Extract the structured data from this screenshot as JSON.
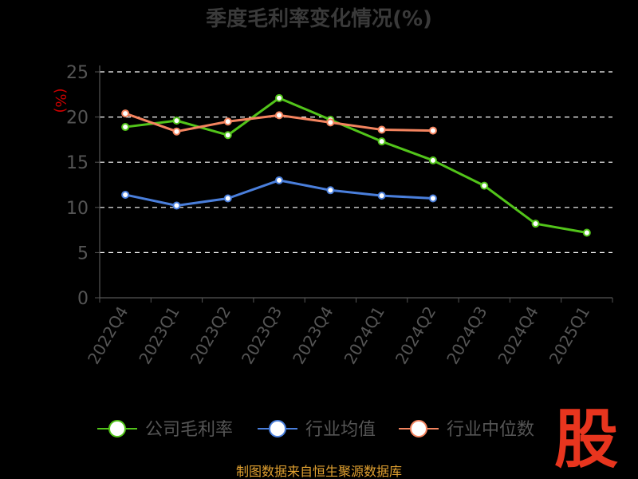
{
  "chart_data": {
    "type": "line",
    "title": "季度毛利率变化情况(%)",
    "ylabel": "(%)",
    "ylim": [
      0,
      25
    ],
    "yticks": [
      0,
      5,
      10,
      15,
      20,
      25
    ],
    "grid": "horizontal-dashed",
    "legend_position": "bottom",
    "categories": [
      "2022Q4",
      "2023Q1",
      "2023Q2",
      "2023Q3",
      "2023Q4",
      "2024Q1",
      "2024Q2",
      "2024Q3",
      "2024Q4",
      "2025Q1"
    ],
    "series": [
      {
        "name": "公司毛利率",
        "color": "#52c41a",
        "values": [
          18.9,
          19.6,
          18.0,
          22.1,
          19.7,
          17.3,
          15.2,
          12.4,
          8.2,
          7.2
        ]
      },
      {
        "name": "行业均值",
        "color": "#4a7fdc",
        "values": [
          11.4,
          10.2,
          11.0,
          13.0,
          11.9,
          11.3,
          11.0,
          null,
          null,
          null
        ]
      },
      {
        "name": "行业中位数",
        "color": "#f4845f",
        "values": [
          20.4,
          18.4,
          19.5,
          20.2,
          19.4,
          18.6,
          18.5,
          null,
          null,
          null
        ]
      }
    ]
  },
  "footer": {
    "source": "制图数据来自恒生聚源数据库"
  },
  "logo": {
    "text": "股"
  }
}
